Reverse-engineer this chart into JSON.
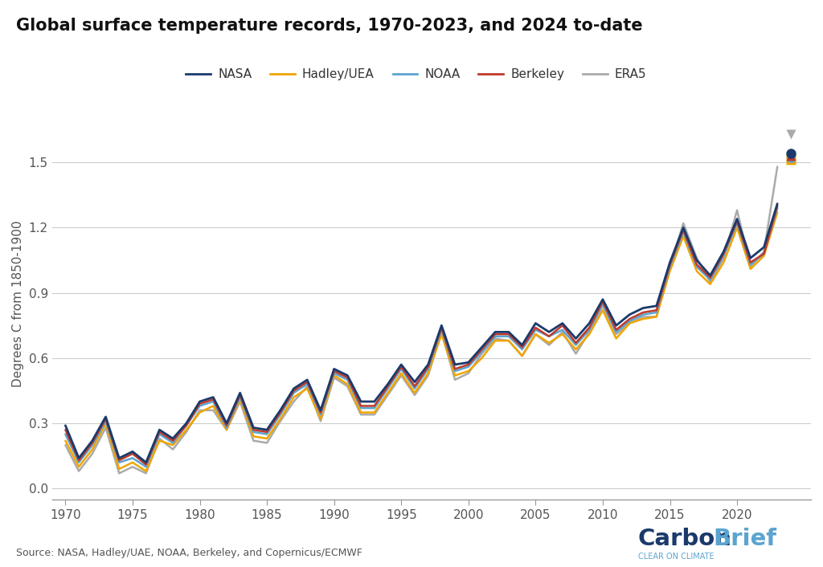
{
  "title": "Global surface temperature records, 1970-2023, and 2024 to-date",
  "ylabel": "Degrees C from 1850-1900",
  "source_text": "Source: NASA, Hadley/UAE, NOAA, Berkeley, and Copernicus/ECMWF",
  "xlim": [
    1969,
    2025.5
  ],
  "ylim": [
    -0.05,
    1.75
  ],
  "yticks": [
    0.0,
    0.3,
    0.6,
    0.9,
    1.2,
    1.5
  ],
  "xticks": [
    1970,
    1975,
    1980,
    1985,
    1990,
    1995,
    2000,
    2005,
    2010,
    2015,
    2020
  ],
  "colors": {
    "NASA": "#1a3a6b",
    "Hadley": "#f0a500",
    "NOAA": "#5ba4cf",
    "Berkeley": "#c0392b",
    "ERA5": "#aaaaaa"
  },
  "years": [
    1970,
    1971,
    1972,
    1973,
    1974,
    1975,
    1976,
    1977,
    1978,
    1979,
    1980,
    1981,
    1982,
    1983,
    1984,
    1985,
    1986,
    1987,
    1988,
    1989,
    1990,
    1991,
    1992,
    1993,
    1994,
    1995,
    1996,
    1997,
    1998,
    1999,
    2000,
    2001,
    2002,
    2003,
    2004,
    2005,
    2006,
    2007,
    2008,
    2009,
    2010,
    2011,
    2012,
    2013,
    2014,
    2015,
    2016,
    2017,
    2018,
    2019,
    2020,
    2021,
    2022,
    2023
  ],
  "NASA": [
    0.29,
    0.14,
    0.22,
    0.33,
    0.14,
    0.17,
    0.12,
    0.27,
    0.23,
    0.3,
    0.4,
    0.42,
    0.3,
    0.44,
    0.28,
    0.27,
    0.36,
    0.46,
    0.5,
    0.36,
    0.55,
    0.52,
    0.4,
    0.4,
    0.48,
    0.57,
    0.49,
    0.57,
    0.75,
    0.57,
    0.58,
    0.65,
    0.72,
    0.72,
    0.66,
    0.76,
    0.72,
    0.76,
    0.69,
    0.76,
    0.87,
    0.75,
    0.8,
    0.83,
    0.84,
    1.04,
    1.2,
    1.05,
    0.98,
    1.09,
    1.24,
    1.06,
    1.11,
    1.31
  ],
  "Hadley": [
    0.22,
    0.1,
    0.18,
    0.3,
    0.09,
    0.12,
    0.08,
    0.22,
    0.2,
    0.27,
    0.35,
    0.38,
    0.27,
    0.41,
    0.24,
    0.23,
    0.32,
    0.42,
    0.46,
    0.32,
    0.52,
    0.48,
    0.35,
    0.35,
    0.44,
    0.53,
    0.44,
    0.53,
    0.71,
    0.52,
    0.54,
    0.6,
    0.68,
    0.68,
    0.61,
    0.71,
    0.67,
    0.71,
    0.64,
    0.71,
    0.82,
    0.69,
    0.76,
    0.78,
    0.79,
    1.0,
    1.16,
    1.0,
    0.94,
    1.04,
    1.2,
    1.01,
    1.07,
    1.27
  ],
  "NOAA": [
    0.25,
    0.12,
    0.2,
    0.31,
    0.12,
    0.14,
    0.1,
    0.25,
    0.21,
    0.29,
    0.38,
    0.4,
    0.28,
    0.42,
    0.26,
    0.25,
    0.34,
    0.44,
    0.48,
    0.34,
    0.53,
    0.5,
    0.37,
    0.37,
    0.46,
    0.55,
    0.46,
    0.55,
    0.73,
    0.54,
    0.56,
    0.63,
    0.7,
    0.7,
    0.64,
    0.73,
    0.7,
    0.73,
    0.66,
    0.73,
    0.85,
    0.72,
    0.77,
    0.8,
    0.81,
    1.02,
    1.18,
    1.02,
    0.96,
    1.07,
    1.22,
    1.03,
    1.08,
    1.29
  ],
  "Berkeley": [
    0.27,
    0.13,
    0.21,
    0.32,
    0.13,
    0.16,
    0.11,
    0.26,
    0.22,
    0.29,
    0.39,
    0.41,
    0.29,
    0.43,
    0.27,
    0.26,
    0.35,
    0.45,
    0.49,
    0.35,
    0.54,
    0.51,
    0.38,
    0.38,
    0.47,
    0.56,
    0.47,
    0.56,
    0.74,
    0.55,
    0.57,
    0.64,
    0.71,
    0.71,
    0.65,
    0.74,
    0.7,
    0.75,
    0.67,
    0.74,
    0.86,
    0.73,
    0.78,
    0.81,
    0.82,
    1.03,
    1.19,
    1.03,
    0.97,
    1.08,
    1.23,
    1.04,
    1.08,
    1.3
  ],
  "ERA5": [
    0.2,
    0.08,
    0.16,
    0.28,
    0.07,
    0.1,
    0.07,
    0.23,
    0.18,
    0.26,
    0.36,
    0.36,
    0.27,
    0.4,
    0.22,
    0.21,
    0.31,
    0.4,
    0.47,
    0.31,
    0.51,
    0.47,
    0.34,
    0.34,
    0.43,
    0.52,
    0.43,
    0.52,
    0.72,
    0.5,
    0.53,
    0.62,
    0.69,
    0.68,
    0.61,
    0.71,
    0.66,
    0.72,
    0.62,
    0.72,
    0.84,
    0.71,
    0.76,
    0.79,
    0.79,
    1.02,
    1.22,
    1.06,
    0.95,
    1.06,
    1.28,
    1.02,
    1.09,
    1.48
  ],
  "shapes_2024": {
    "ERA5": {
      "value": 1.63,
      "marker": "v",
      "color": "#aaaaaa",
      "zorder": 4,
      "ms": 9
    },
    "NASA": {
      "value": 1.54,
      "marker": "o",
      "color": "#1a3a6b",
      "zorder": 7,
      "ms": 9
    },
    "Berkeley": {
      "value": 1.53,
      "marker": "^",
      "color": "#c0392b",
      "zorder": 6,
      "ms": 9
    },
    "NOAA": {
      "value": 1.52,
      "marker": "o",
      "color": "#5ba4cf",
      "zorder": 5,
      "ms": 8
    },
    "Hadley": {
      "value": 1.51,
      "marker": "s",
      "color": "#f0a500",
      "zorder": 3,
      "ms": 8
    }
  },
  "background_color": "#ffffff",
  "grid_color": "#cccccc",
  "tick_color": "#555555",
  "cb_dark": "#1a3a6b",
  "cb_light": "#5ba4cf"
}
